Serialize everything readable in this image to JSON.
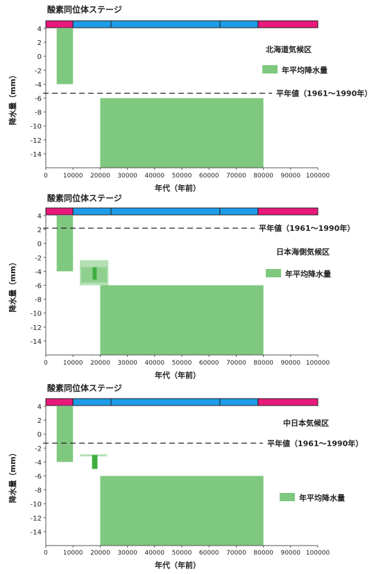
{
  "chart_data": [
    {
      "type": "bar",
      "stage_title": "酸素同位体ステージ",
      "region": "北海道気候区",
      "legend": "年平均降水量",
      "ylabel": "降水量（mm）",
      "xlabel": "年代（年前）",
      "ylim": [
        -16,
        4
      ],
      "yticks": [
        "4",
        "2",
        "0",
        "-2",
        "-4",
        "-6",
        "-8",
        "-10",
        "-12",
        "-14"
      ],
      "xlim": [
        0,
        100000
      ],
      "xticks": [
        "0",
        "10000",
        "20000",
        "30000",
        "40000",
        "50000",
        "60000",
        "70000",
        "80000",
        "90000",
        "100000"
      ],
      "stages": [
        {
          "start": 0,
          "end": 10000,
          "color": "#e8197a"
        },
        {
          "start": 10000,
          "end": 24000,
          "color": "#1f9ce8"
        },
        {
          "start": 24000,
          "end": 64000,
          "color": "#1f9ce8"
        },
        {
          "start": 64000,
          "end": 78000,
          "color": "#1f9ce8"
        },
        {
          "start": 78000,
          "end": 100000,
          "color": "#e8197a"
        }
      ],
      "reference": {
        "label": "平年値（1961〜1990年）",
        "value": -5.3
      },
      "bars": [
        {
          "x0": 4000,
          "x1": 10000,
          "y0": -4,
          "y1": 4,
          "style": "main"
        },
        {
          "x0": 20000,
          "x1": 80000,
          "y0": -16,
          "y1": -6,
          "style": "main"
        }
      ]
    },
    {
      "type": "bar",
      "stage_title": "酸素同位体ステージ",
      "region": "日本海側気候区",
      "legend": "年平均降水量",
      "ylabel": "降水量（mm）",
      "xlabel": "年代（年前）",
      "ylim": [
        -16,
        4
      ],
      "yticks": [
        "4",
        "2",
        "0",
        "-2",
        "-4",
        "-6",
        "-8",
        "-10",
        "-12",
        "-14"
      ],
      "xlim": [
        0,
        100000
      ],
      "xticks": [
        "0",
        "10000",
        "20000",
        "30000",
        "40000",
        "50000",
        "60000",
        "70000",
        "80000",
        "90000",
        "100000"
      ],
      "stages": [
        {
          "start": 0,
          "end": 10000,
          "color": "#e8197a"
        },
        {
          "start": 10000,
          "end": 24000,
          "color": "#1f9ce8"
        },
        {
          "start": 24000,
          "end": 64000,
          "color": "#1f9ce8"
        },
        {
          "start": 64000,
          "end": 78000,
          "color": "#1f9ce8"
        },
        {
          "start": 78000,
          "end": 100000,
          "color": "#e8197a"
        }
      ],
      "reference": {
        "label": "平年値（1961〜1990年）",
        "value": 2.2
      },
      "bars": [
        {
          "x0": 4000,
          "x1": 10000,
          "y0": -4,
          "y1": 4,
          "style": "main"
        },
        {
          "x0": 20000,
          "x1": 80000,
          "y0": -16,
          "y1": -6,
          "style": "main"
        },
        {
          "x0": 12500,
          "x1": 23000,
          "y0": -6,
          "y1": -2.4,
          "style": "light"
        },
        {
          "x0": 13000,
          "x1": 22500,
          "y0": -5.6,
          "y1": -3.4,
          "style": "mid"
        },
        {
          "x0": 17200,
          "x1": 18700,
          "y0": -5.2,
          "y1": -3.4,
          "style": "dark"
        }
      ]
    },
    {
      "type": "bar",
      "stage_title": "酸素同位体ステージ",
      "region": "中日本気候区",
      "legend": "年平均降水量",
      "ylabel": "降水量（mm）",
      "xlabel": "年代（年前）",
      "ylim": [
        -16,
        4
      ],
      "yticks": [
        "4",
        "2",
        "0",
        "-2",
        "-4",
        "-6",
        "-8",
        "-10",
        "-12",
        "-14"
      ],
      "xlim": [
        0,
        100000
      ],
      "xticks": [
        "0",
        "10000",
        "20000",
        "30000",
        "40000",
        "50000",
        "60000",
        "70000",
        "80000",
        "90000",
        "100000"
      ],
      "stages": [
        {
          "start": 0,
          "end": 10000,
          "color": "#e8197a"
        },
        {
          "start": 10000,
          "end": 24000,
          "color": "#1f9ce8"
        },
        {
          "start": 24000,
          "end": 64000,
          "color": "#1f9ce8"
        },
        {
          "start": 64000,
          "end": 78000,
          "color": "#1f9ce8"
        },
        {
          "start": 78000,
          "end": 100000,
          "color": "#e8197a"
        }
      ],
      "reference": {
        "label": "平年値（1961〜1990年）",
        "value": -1.3
      },
      "bars": [
        {
          "x0": 4000,
          "x1": 10000,
          "y0": -4,
          "y1": 4,
          "style": "main"
        },
        {
          "x0": 20000,
          "x1": 80000,
          "y0": -16,
          "y1": -6,
          "style": "main"
        },
        {
          "x0": 12500,
          "x1": 22500,
          "y0": -3.2,
          "y1": -2.9,
          "style": "light"
        },
        {
          "x0": 17000,
          "x1": 19000,
          "y0": -5.0,
          "y1": -3.0,
          "style": "dark"
        }
      ]
    }
  ],
  "colors": {
    "main": "#7fc87f",
    "light": "#b4e0b4",
    "mid": "#8fd08f",
    "dark": "#3fae3f",
    "axis": "#555555"
  }
}
